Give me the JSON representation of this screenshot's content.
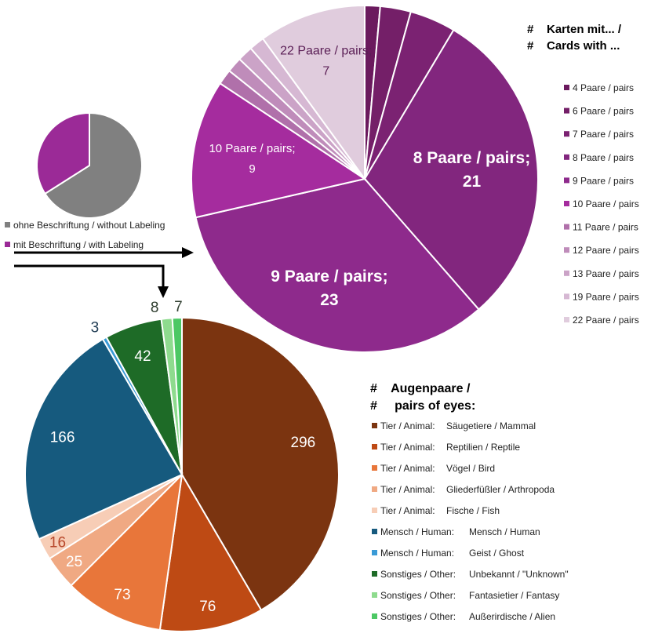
{
  "chart_data": [
    {
      "type": "pie",
      "series_name": "Beschriftung",
      "slices": [
        {
          "label": "ohne Beschriftung / without Labeling",
          "value": 66,
          "color": "#808080"
        },
        {
          "label": "mit Beschriftung / with Labeling",
          "value": 34,
          "color": "#9B2A97"
        }
      ],
      "legend_position": "bottom"
    },
    {
      "type": "pie",
      "legend_title_line1": "#    Karten mit... /",
      "legend_title_line2": "#    Cards with ...",
      "legend_position": "right",
      "slices": [
        {
          "label": "4 Paare / pairs",
          "value": 1,
          "color": "#6B1A5E",
          "display": ""
        },
        {
          "label": "6 Paare / pairs",
          "value": 2,
          "color": "#741F68",
          "display": ""
        },
        {
          "label": "7 Paare / pairs",
          "value": 3,
          "color": "#7B2272",
          "display": ""
        },
        {
          "label": "8 Paare / pairs",
          "value": 21,
          "color": "#82267E",
          "display": "8 Paare / pairs; 21"
        },
        {
          "label": "9 Paare / pairs",
          "value": 23,
          "color": "#8E2A8C",
          "display": "9 Paare / pairs; 23"
        },
        {
          "label": "10 Paare / pairs",
          "value": 9,
          "color": "#A52C9E",
          "display": "10 Paare / pairs; 9"
        },
        {
          "label": "11 Paare / pairs",
          "value": 1,
          "color": "#B070AA",
          "display": ""
        },
        {
          "label": "12 Paare / pairs",
          "value": 1,
          "color": "#BF8CBA",
          "display": ""
        },
        {
          "label": "13 Paare / pairs",
          "value": 1,
          "color": "#CBA3C7",
          "display": ""
        },
        {
          "label": "19 Paare / pairs",
          "value": 1,
          "color": "#D6B8D3",
          "display": ""
        },
        {
          "label": "22 Paare / pairs",
          "value": 7,
          "color": "#E0CCDD",
          "display": "22 Paare / pairs; 7"
        }
      ]
    },
    {
      "type": "pie",
      "legend_title_line1": "#    Augenpaare /",
      "legend_title_line2": "#     pairs of eyes:",
      "legend_position": "right",
      "slices": [
        {
          "category": "Tier / Animal:",
          "label": "Säugetiere / Mammal",
          "value": 296,
          "color": "#7B3410"
        },
        {
          "category": "Tier / Animal:",
          "label": "Reptilien / Reptile",
          "value": 76,
          "color": "#BE4A14"
        },
        {
          "category": "Tier / Animal:",
          "label": "Vögel / Bird",
          "value": 73,
          "color": "#E8763A"
        },
        {
          "category": "Tier / Animal:",
          "label": "Gliederfüßler / Arthropoda",
          "value": 25,
          "color": "#F0A983"
        },
        {
          "category": "Tier / Animal:",
          "label": "Fische / Fish",
          "value": 16,
          "color": "#F7CDB6"
        },
        {
          "category": "Mensch / Human:",
          "label": "Mensch / Human",
          "value": 166,
          "color": "#165A7E"
        },
        {
          "category": "Mensch / Human:",
          "label": "Geist / Ghost",
          "value": 3,
          "color": "#3A9AD6"
        },
        {
          "category": "Sonstiges / Other:",
          "label": "Unbekannt / \"Unknown\"",
          "value": 42,
          "color": "#1E6B27"
        },
        {
          "category": "Sonstiges / Other:",
          "label": "Fantasietier / Fantasy",
          "value": 8,
          "color": "#8EDB8E"
        },
        {
          "category": "Sonstiges / Other:",
          "label": "Außerirdische / Alien",
          "value": 7,
          "color": "#4CC864"
        }
      ]
    }
  ]
}
